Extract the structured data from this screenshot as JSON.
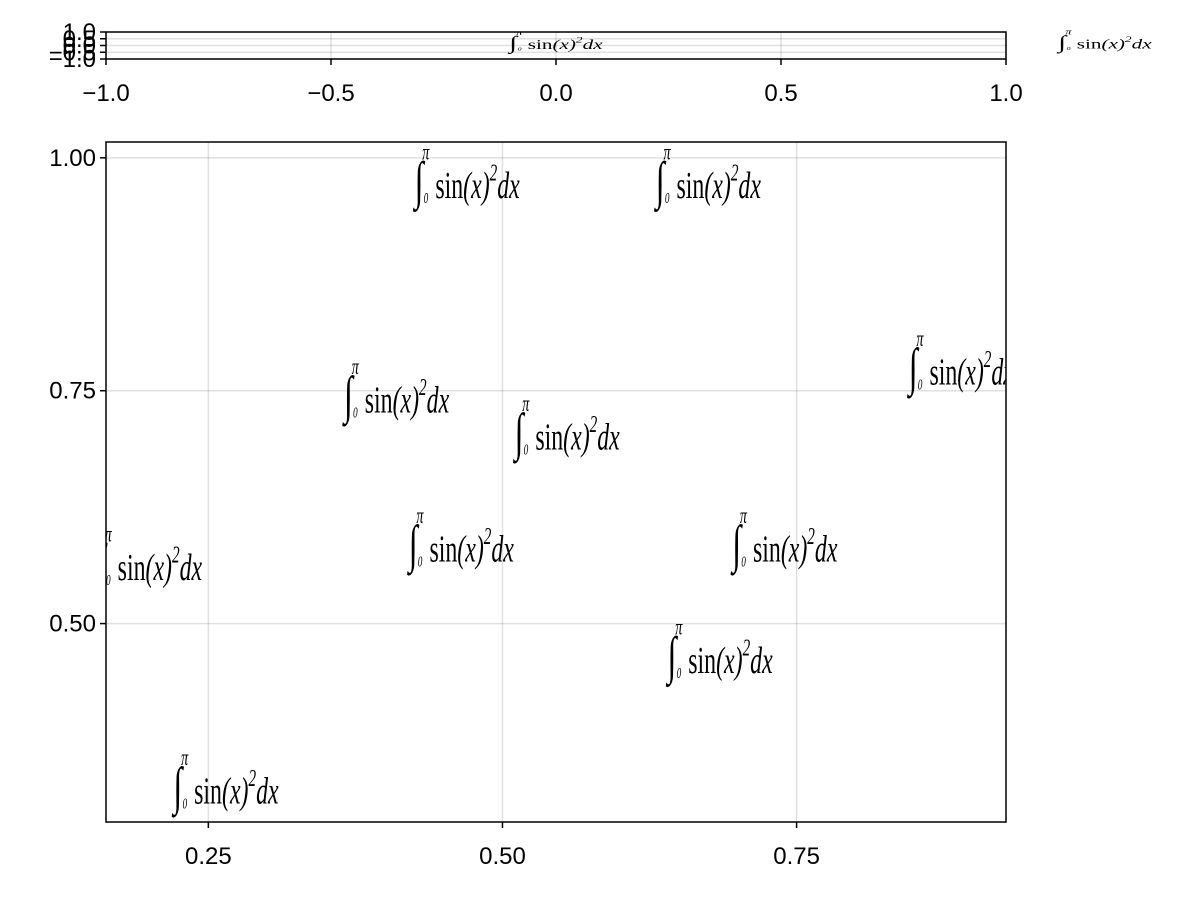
{
  "chart_data": [
    {
      "type": "scatter",
      "title": "",
      "xlabel": "",
      "ylabel": "",
      "xlim": [
        -1.0,
        1.0
      ],
      "ylim": [
        -1.0,
        1.0
      ],
      "xticks": [
        "−1.0",
        "−0.5",
        "0.0",
        "0.5",
        "1.0"
      ],
      "yticks": [
        "−1.0",
        "−0.5",
        "0.0",
        "0.5",
        "1.0"
      ],
      "grid": true,
      "series": [
        {
          "marker_text": "∫₀^π sin(x)²dx",
          "points": [
            {
              "x": 0.0,
              "y": 0.0
            }
          ]
        }
      ],
      "annotation_right": "∫₀^π sin(x)²dx"
    },
    {
      "type": "scatter",
      "title": "",
      "xlabel": "",
      "ylabel": "",
      "xlim": [
        0.163,
        0.928
      ],
      "ylim": [
        0.287,
        1.017
      ],
      "xticks": [
        "0.25",
        "0.50",
        "0.75"
      ],
      "yticks": [
        "0.50",
        "0.75",
        "1.00"
      ],
      "grid": true,
      "series": [
        {
          "marker_text": "∫₀^π sin(x)²dx",
          "points": [
            {
              "x": 0.47,
              "y": 0.97
            },
            {
              "x": 0.675,
              "y": 0.97
            },
            {
              "x": 0.89,
              "y": 0.77
            },
            {
              "x": 0.41,
              "y": 0.74
            },
            {
              "x": 0.555,
              "y": 0.7
            },
            {
              "x": 0.2,
              "y": 0.56
            },
            {
              "x": 0.465,
              "y": 0.58
            },
            {
              "x": 0.74,
              "y": 0.58
            },
            {
              "x": 0.685,
              "y": 0.46
            },
            {
              "x": 0.265,
              "y": 0.32
            }
          ]
        }
      ]
    }
  ]
}
